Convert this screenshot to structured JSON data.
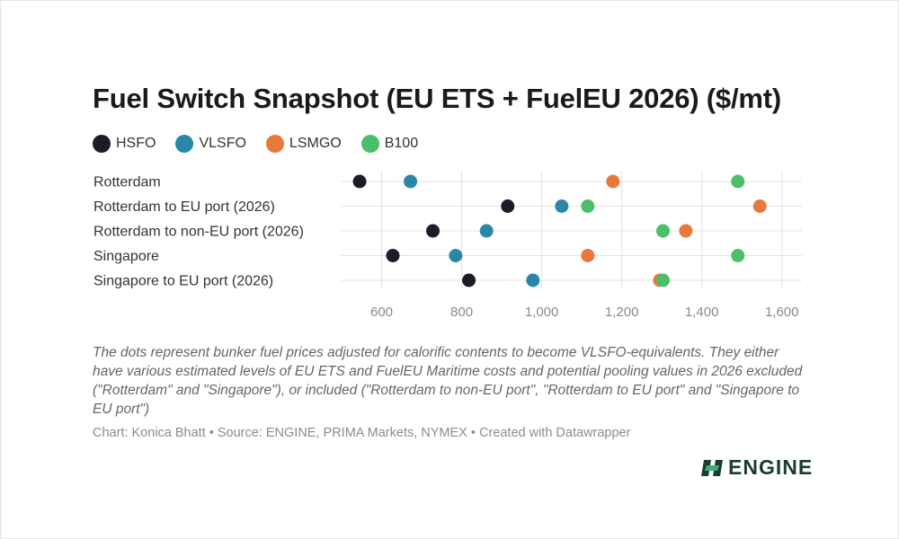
{
  "title": "Fuel Switch Snapshot (EU ETS + FuelEU 2026) ($/mt)",
  "notes": "The dots represent bunker fuel prices adjusted for calorific contents to become VLSFO-equivalents. They either have various estimated levels of EU ETS and FuelEU Maritime costs and potential pooling values in 2026 excluded (\"Rotterdam\" and \"Singapore\"), or included (\"Rotterdam to non-EU port\", \"Rotterdam to EU port\" and \"Singapore to EU port\")",
  "byline": "Chart: Konica Bhatt • Source: ENGINE, PRIMA Markets, NYMEX • Created with Datawrapper",
  "logo": {
    "text": "ENGINE",
    "icon": "engine-logo-icon",
    "color": "#1d3b33",
    "accent": "#3bb273"
  },
  "chart_data": {
    "type": "scatter",
    "title": "Fuel Switch Snapshot (EU ETS + FuelEU 2026) ($/mt)",
    "categories": [
      "Rotterdam",
      "Rotterdam to EU port (2026)",
      "Rotterdam to non-EU port (2026)",
      "Singapore",
      "Singapore to EU port (2026)"
    ],
    "xlim": [
      500,
      1650
    ],
    "xticks": [
      600,
      800,
      1000,
      1200,
      1400,
      1600
    ],
    "xtick_labels": [
      "600",
      "800",
      "1,000",
      "1,200",
      "1,400",
      "1,600"
    ],
    "grid": true,
    "legend_position": "top-left",
    "series": [
      {
        "name": "HSFO",
        "color": "#1c1c28",
        "values": [
          545,
          915,
          728,
          628,
          818
        ]
      },
      {
        "name": "VLSFO",
        "color": "#2a87a8",
        "values": [
          672,
          1050,
          862,
          785,
          978
        ]
      },
      {
        "name": "LSMGO",
        "color": "#e8783c",
        "values": [
          1178,
          1545,
          1360,
          1115,
          1295
        ]
      },
      {
        "name": "B100",
        "color": "#4cbf6a",
        "values": [
          1490,
          1115,
          1303,
          1490,
          1303
        ]
      }
    ]
  }
}
